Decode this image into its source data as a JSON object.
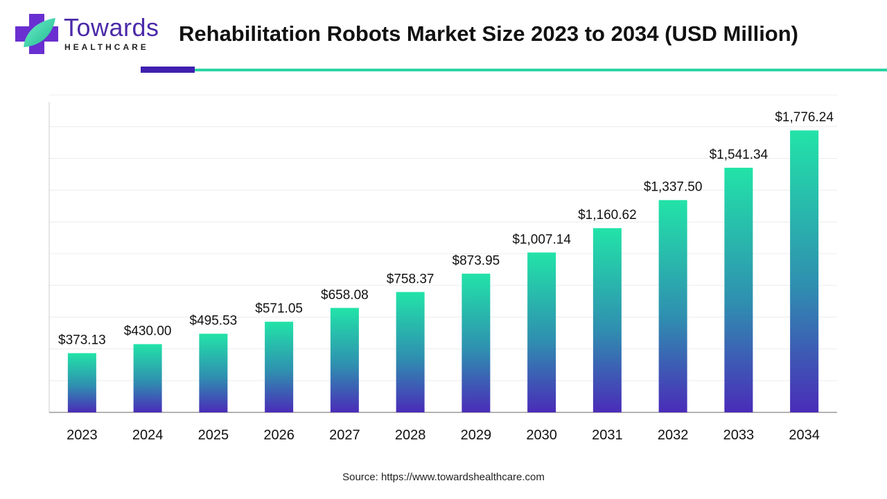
{
  "header": {
    "logo_line1": "Towards",
    "logo_line2": "HEALTHCARE",
    "title": "Rehabilitation Robots Market Size 2023 to 2034 (USD Million)"
  },
  "colors": {
    "brand_purple": "#4b2aa8",
    "accent_teal": "#2ed3a4",
    "bar_top": "#22e3a8",
    "bar_mid": "#2f8fb0",
    "bar_bottom": "#4a2cb8"
  },
  "chart_data": {
    "type": "bar",
    "title": "Rehabilitation Robots Market Size 2023 to 2034 (USD Million)",
    "xlabel": "",
    "ylabel": "",
    "ylim": [
      0,
      2000
    ],
    "grid": true,
    "categories": [
      "2023",
      "2024",
      "2025",
      "2026",
      "2027",
      "2028",
      "2029",
      "2030",
      "2031",
      "2032",
      "2033",
      "2034"
    ],
    "values": [
      373.13,
      430.0,
      495.53,
      571.05,
      658.08,
      758.37,
      873.95,
      1007.14,
      1160.62,
      1337.5,
      1541.34,
      1776.24
    ],
    "value_labels": [
      "$373.13",
      "$430.00",
      "$495.53",
      "$571.05",
      "$658.08",
      "$758.37",
      "$873.95",
      "$1,007.14",
      "$1,160.62",
      "$1,337.50",
      "$1,541.34",
      "$1,776.24"
    ]
  },
  "footer": {
    "source": "Source: https://www.towardshealthcare.com"
  }
}
